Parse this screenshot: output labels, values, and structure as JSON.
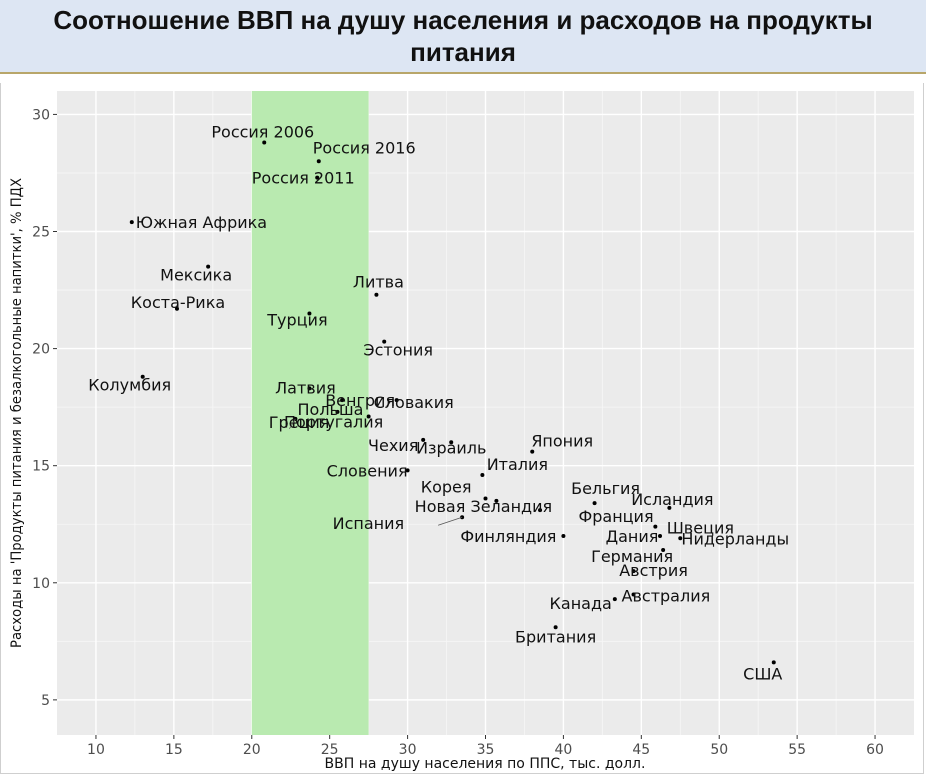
{
  "header": {
    "title": "Соотношение ВВП на душу населения и расходов на продукты питания"
  },
  "chart_data": {
    "type": "scatter",
    "xlabel": "ВВП на душу населения по ППС, тыс. долл.",
    "ylabel": "Расходы на 'Продукты питания и безалкогольные напитки', % ПДХ",
    "xlim": [
      7.5,
      62.5
    ],
    "ylim": [
      3.5,
      31
    ],
    "xticks": [
      10,
      15,
      20,
      25,
      30,
      35,
      40,
      45,
      50,
      55,
      60
    ],
    "yticks": [
      5,
      10,
      15,
      20,
      25,
      30
    ],
    "grid": true,
    "highlight_band": {
      "x_from": 20,
      "x_to": 27.5,
      "color": "#b9eab0"
    },
    "points": [
      {
        "label": "Россия 2006",
        "x": 20.8,
        "y": 28.8
      },
      {
        "label": "Россия 2016",
        "x": 24.3,
        "y": 28.0
      },
      {
        "label": "Россия 2011",
        "x": 24.2,
        "y": 27.3
      },
      {
        "label": "Южная Африка",
        "x": 12.3,
        "y": 25.4
      },
      {
        "label": "Мексика",
        "x": 17.2,
        "y": 23.5
      },
      {
        "label": "Коста-Рика",
        "x": 15.2,
        "y": 21.7
      },
      {
        "label": "Литва",
        "x": 28.0,
        "y": 22.3
      },
      {
        "label": "Турция",
        "x": 23.7,
        "y": 21.5
      },
      {
        "label": "Эстония",
        "x": 28.5,
        "y": 20.3
      },
      {
        "label": "Колумбия",
        "x": 13.0,
        "y": 18.8
      },
      {
        "label": "Латвия",
        "x": 23.7,
        "y": 18.3
      },
      {
        "label": "Венгрия",
        "x": 25.8,
        "y": 17.8
      },
      {
        "label": "Польша",
        "x": 25.5,
        "y": 17.3
      },
      {
        "label": "Словакия",
        "x": 29.3,
        "y": 17.8
      },
      {
        "label": "Греция",
        "x": 22.8,
        "y": 17.0
      },
      {
        "label": "Португалия",
        "x": 27.5,
        "y": 17.1
      },
      {
        "label": "Чехия",
        "x": 31.0,
        "y": 16.1
      },
      {
        "label": "Израиль",
        "x": 32.8,
        "y": 16.0
      },
      {
        "label": "Япония",
        "x": 38.0,
        "y": 15.6
      },
      {
        "label": "Словения",
        "x": 30.0,
        "y": 14.8
      },
      {
        "label": "Италия",
        "x": 34.8,
        "y": 14.6
      },
      {
        "label": "Корея",
        "x": 35.0,
        "y": 13.6
      },
      {
        "label": "Бельгия",
        "x": 42.0,
        "y": 13.4
      },
      {
        "label": "Исландия",
        "x": 46.8,
        "y": 13.2
      },
      {
        "label": "Новая Зеландия",
        "x": 35.7,
        "y": 13.5
      },
      {
        "label": "Франция",
        "x": 38.5,
        "y": 13.1
      },
      {
        "label": "Швеция",
        "x": 45.9,
        "y": 12.4
      },
      {
        "label": "Испания",
        "x": 33.5,
        "y": 12.8
      },
      {
        "label": "Финляндия",
        "x": 40.0,
        "y": 12.0
      },
      {
        "label": "Дания",
        "x": 46.2,
        "y": 12.0
      },
      {
        "label": "Нидерланды",
        "x": 47.5,
        "y": 11.9
      },
      {
        "label": "Германия",
        "x": 46.4,
        "y": 11.4
      },
      {
        "label": "Австрия",
        "x": 44.5,
        "y": 10.5
      },
      {
        "label": "Канада",
        "x": 43.3,
        "y": 9.3
      },
      {
        "label": "Австралия",
        "x": 44.5,
        "y": 9.5
      },
      {
        "label": "Британия",
        "x": 39.5,
        "y": 8.1
      },
      {
        "label": "США",
        "x": 53.5,
        "y": 6.6
      }
    ]
  }
}
